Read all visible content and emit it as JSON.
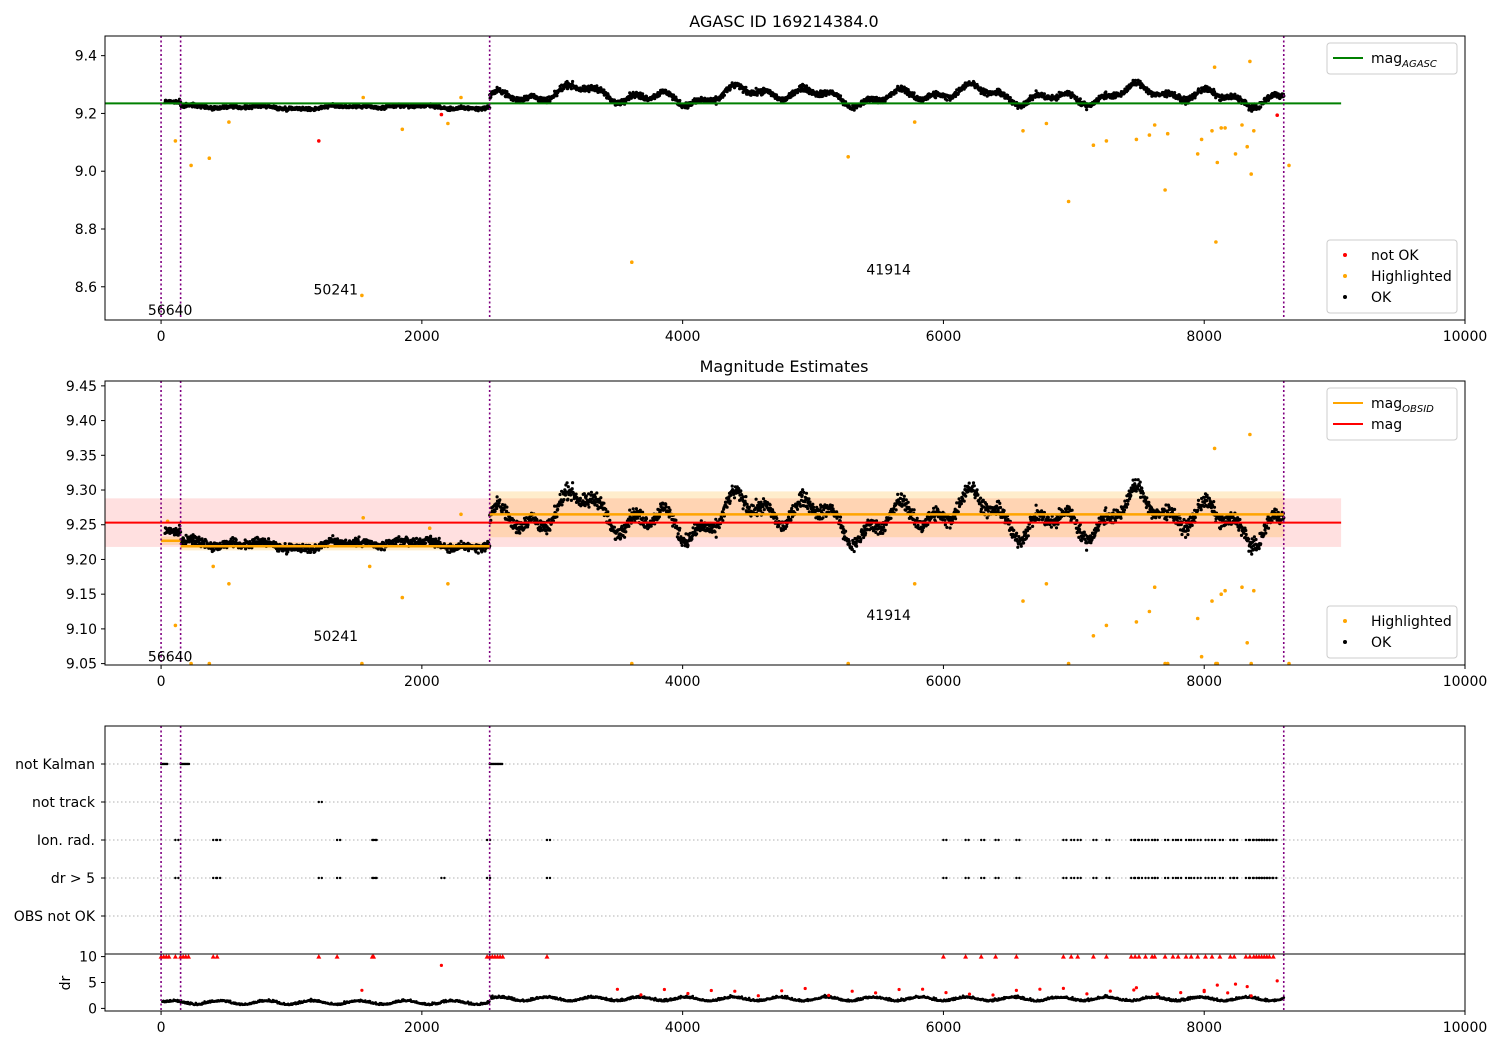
{
  "chart_data": [
    {
      "type": "scatter",
      "title": "AGASC ID 169214384.0",
      "xlim": [
        -430,
        10000
      ],
      "ylim": [
        8.485,
        9.468
      ],
      "xticks": [
        0,
        2000,
        4000,
        6000,
        8000,
        10000
      ],
      "yticks": [
        8.6,
        8.8,
        9.0,
        9.2,
        9.4
      ],
      "xtick_labels": [
        "0",
        "2000",
        "4000",
        "6000",
        "8000",
        "10000"
      ],
      "ytick_labels": [
        "8.6",
        "8.8",
        "9.0",
        "9.2",
        "9.4"
      ],
      "obsid_boundaries": [
        0,
        150,
        2520,
        8610
      ],
      "obsid_labels": [
        {
          "text": "56640",
          "x": 70,
          "y": 8.52
        },
        {
          "text": "50241",
          "x": 1340,
          "y": 8.59
        },
        {
          "text": "41914",
          "x": 5580,
          "y": 8.66
        }
      ],
      "mag_agasc": {
        "value": 9.235,
        "x": [
          -430,
          9050
        ],
        "color": "#008000"
      },
      "series": [
        {
          "name": "not OK",
          "color": "#ff0000",
          "points": [
            [
              1210,
              9.105
            ],
            [
              2150,
              9.196
            ],
            [
              8560,
              9.194
            ]
          ]
        },
        {
          "name": "Highlighted",
          "color": "#ffa500",
          "points": [
            [
              110,
              9.105
            ],
            [
              230,
              9.02
            ],
            [
              370,
              9.045
            ],
            [
              520,
              9.17
            ],
            [
              1540,
              8.57
            ],
            [
              1550,
              9.255
            ],
            [
              1850,
              9.145
            ],
            [
              2200,
              9.165
            ],
            [
              2300,
              9.255
            ],
            [
              3610,
              8.685
            ],
            [
              5270,
              9.05
            ],
            [
              5780,
              9.17
            ],
            [
              6610,
              9.14
            ],
            [
              6790,
              9.165
            ],
            [
              6960,
              8.895
            ],
            [
              7150,
              9.09
            ],
            [
              7250,
              9.105
            ],
            [
              7480,
              9.11
            ],
            [
              7580,
              9.125
            ],
            [
              7620,
              9.16
            ],
            [
              7700,
              8.935
            ],
            [
              7720,
              9.13
            ],
            [
              7950,
              9.06
            ],
            [
              7980,
              9.11
            ],
            [
              8060,
              9.14
            ],
            [
              8080,
              9.36
            ],
            [
              8090,
              8.755
            ],
            [
              8100,
              9.03
            ],
            [
              8130,
              9.15
            ],
            [
              8160,
              9.15
            ],
            [
              8240,
              9.06
            ],
            [
              8290,
              9.16
            ],
            [
              8330,
              9.085
            ],
            [
              8350,
              9.38
            ],
            [
              8360,
              8.99
            ],
            [
              8380,
              9.14
            ],
            [
              8650,
              9.02
            ]
          ]
        },
        {
          "name": "OK",
          "color": "#000000",
          "segments": [
            {
              "x0": 30,
              "x1": 150,
              "mean": 9.232,
              "amp": 0.012,
              "noise": 0.006
            },
            {
              "x0": 150,
              "x1": 2520,
              "mean": 9.222,
              "amp": 0.006,
              "noise": 0.006
            },
            {
              "x0": 2520,
              "x1": 8610,
              "mean": 9.262,
              "amp": 0.03,
              "noise": 0.01
            }
          ]
        }
      ],
      "legends": [
        {
          "place": "upper-right",
          "entries": [
            {
              "label": "mag",
              "sub": "AGASC",
              "marker": "line",
              "color": "#008000"
            }
          ]
        },
        {
          "place": "lower-right",
          "entries": [
            {
              "label": "not OK",
              "marker": "dot",
              "color": "#ff0000"
            },
            {
              "label": "Highlighted",
              "marker": "dot",
              "color": "#ffa500"
            },
            {
              "label": "OK",
              "marker": "dot",
              "color": "#000000"
            }
          ]
        }
      ]
    },
    {
      "type": "scatter",
      "title": "Magnitude Estimates",
      "xlim": [
        -430,
        10000
      ],
      "ylim": [
        9.048,
        9.457
      ],
      "xticks": [
        0,
        2000,
        4000,
        6000,
        8000,
        10000
      ],
      "yticks": [
        9.05,
        9.1,
        9.15,
        9.2,
        9.25,
        9.3,
        9.35,
        9.4,
        9.45
      ],
      "xtick_labels": [
        "0",
        "2000",
        "4000",
        "6000",
        "8000",
        "10000"
      ],
      "ytick_labels": [
        "9.05",
        "9.10",
        "9.15",
        "9.20",
        "9.25",
        "9.30",
        "9.35",
        "9.40",
        "9.45"
      ],
      "obsid_boundaries": [
        0,
        150,
        2520,
        8610
      ],
      "obsid_labels": [
        {
          "text": "56640",
          "x": 70,
          "y": 9.06
        },
        {
          "text": "50241",
          "x": 1340,
          "y": 9.09
        },
        {
          "text": "41914",
          "x": 5580,
          "y": 9.12
        }
      ],
      "mag": {
        "value": 9.253,
        "band": [
          9.218,
          9.288
        ],
        "x": [
          -430,
          9050
        ],
        "color": "#ff0000"
      },
      "mag_obsid": [
        {
          "x0": 0,
          "x1": 150,
          "value": 9.227,
          "band": [
            9.221,
            9.233
          ]
        },
        {
          "x0": 150,
          "x1": 2520,
          "value": 9.219,
          "band": [
            9.213,
            9.225
          ]
        },
        {
          "x0": 2520,
          "x1": 8610,
          "value": 9.265,
          "band": [
            9.232,
            9.298
          ]
        }
      ],
      "series": [
        {
          "name": "Highlighted",
          "color": "#ffa500",
          "points": [
            [
              50,
              9.255
            ],
            [
              110,
              9.105
            ],
            [
              230,
              9.05
            ],
            [
              370,
              9.05
            ],
            [
              400,
              9.19
            ],
            [
              520,
              9.165
            ],
            [
              1540,
              9.05
            ],
            [
              1550,
              9.26
            ],
            [
              1600,
              9.19
            ],
            [
              1850,
              9.145
            ],
            [
              2060,
              9.245
            ],
            [
              2200,
              9.165
            ],
            [
              2300,
              9.265
            ],
            [
              3610,
              9.05
            ],
            [
              5270,
              9.05
            ],
            [
              5780,
              9.165
            ],
            [
              6610,
              9.14
            ],
            [
              6790,
              9.165
            ],
            [
              6960,
              9.05
            ],
            [
              7150,
              9.09
            ],
            [
              7250,
              9.105
            ],
            [
              7480,
              9.11
            ],
            [
              7580,
              9.125
            ],
            [
              7620,
              9.16
            ],
            [
              7700,
              9.05
            ],
            [
              7720,
              9.05
            ],
            [
              7950,
              9.115
            ],
            [
              7980,
              9.06
            ],
            [
              8060,
              9.14
            ],
            [
              8080,
              9.36
            ],
            [
              8090,
              9.05
            ],
            [
              8100,
              9.05
            ],
            [
              8130,
              9.15
            ],
            [
              8160,
              9.155
            ],
            [
              8290,
              9.16
            ],
            [
              8330,
              9.08
            ],
            [
              8350,
              9.38
            ],
            [
              8360,
              9.05
            ],
            [
              8380,
              9.155
            ],
            [
              8650,
              9.05
            ]
          ]
        },
        {
          "name": "OK",
          "color": "#000000",
          "segments": [
            {
              "x0": 30,
              "x1": 150,
              "mean": 9.232,
              "amp": 0.012,
              "noise": 0.006
            },
            {
              "x0": 150,
              "x1": 2520,
              "mean": 9.222,
              "amp": 0.006,
              "noise": 0.006
            },
            {
              "x0": 2520,
              "x1": 8610,
              "mean": 9.262,
              "amp": 0.03,
              "noise": 0.01
            }
          ]
        }
      ],
      "legends": [
        {
          "place": "upper-right",
          "entries": [
            {
              "label": "mag",
              "sub": "OBSID",
              "marker": "line",
              "color": "#ffa500"
            },
            {
              "label": "mag",
              "marker": "line",
              "color": "#ff0000"
            }
          ]
        },
        {
          "place": "lower-right",
          "entries": [
            {
              "label": "Highlighted",
              "marker": "dot",
              "color": "#ffa500"
            },
            {
              "label": "OK",
              "marker": "dot",
              "color": "#000000"
            }
          ]
        }
      ]
    },
    {
      "type": "scatter",
      "xlim": [
        -430,
        10000
      ],
      "categories": [
        "not Kalman",
        "not track",
        "Ion. rad.",
        "dr > 5",
        "OBS not OK"
      ],
      "obsid_boundaries": [
        0,
        150,
        2520,
        8610
      ],
      "grid": true,
      "flags": {
        "not Kalman": [
          [
            0,
            50
          ],
          [
            150,
            220
          ],
          [
            2520,
            2620
          ]
        ],
        "not track": [
          1210
        ],
        "Ion. rad.": [
          110,
          400,
          430,
          1350,
          1620,
          1630,
          2500,
          2960,
          6000,
          6170,
          6290,
          6400,
          6560,
          6920,
          6980,
          7030,
          7150,
          7250,
          7440,
          7470,
          7500,
          7550,
          7600,
          7620,
          7700,
          7760,
          7800,
          7860,
          7900,
          7950,
          8010,
          8060,
          8120,
          8200,
          8230,
          8320,
          8350,
          8380,
          8400,
          8420,
          8440,
          8460,
          8480,
          8500,
          8530
        ],
        "dr > 5": [
          110,
          400,
          430,
          1210,
          1350,
          1620,
          1630,
          2150,
          2500,
          2960,
          6000,
          6170,
          6290,
          6400,
          6560,
          6920,
          6980,
          7030,
          7150,
          7250,
          7440,
          7470,
          7500,
          7550,
          7600,
          7620,
          7700,
          7760,
          7800,
          7860,
          7900,
          7950,
          8010,
          8060,
          8120,
          8200,
          8230,
          8320,
          8350,
          8380,
          8400,
          8420,
          8440,
          8460,
          8480,
          8500,
          8530
        ],
        "OBS not OK": []
      }
    },
    {
      "type": "scatter",
      "ylabel": "dr",
      "xlim": [
        -430,
        10000
      ],
      "ylim": [
        -0.5,
        10.5
      ],
      "xticks": [
        0,
        2000,
        4000,
        6000,
        8000,
        10000
      ],
      "yticks": [
        0,
        5,
        10
      ],
      "xtick_labels": [
        "0",
        "2000",
        "4000",
        "6000",
        "8000",
        "10000"
      ],
      "ytick_labels": [
        "0",
        "5",
        "10"
      ],
      "obsid_boundaries": [
        0,
        150,
        2520,
        8610
      ],
      "clipped_marker": "triangle-up at 10",
      "dr_points": {
        "clipped_at_10": [
          0,
          20,
          40,
          60,
          110,
          150,
          170,
          190,
          210,
          400,
          430,
          1210,
          1350,
          1620,
          1630,
          2500,
          2520,
          2540,
          2560,
          2580,
          2600,
          2620,
          2960,
          6000,
          6170,
          6290,
          6400,
          6560,
          6920,
          6980,
          7030,
          7150,
          7250,
          7440,
          7470,
          7500,
          7550,
          7600,
          7620,
          7700,
          7760,
          7800,
          7860,
          7900,
          7950,
          8010,
          8060,
          8120,
          8200,
          8230,
          8320,
          8350,
          8380,
          8400,
          8420,
          8440,
          8460,
          8480,
          8500,
          8530
        ],
        "red_mid": [
          [
            2150,
            8.3
          ],
          [
            1540,
            3.5
          ],
          [
            8560,
            5.3
          ],
          [
            8100,
            4.5
          ],
          [
            8240,
            4.7
          ],
          [
            8330,
            4.2
          ],
          [
            7480,
            4.0
          ],
          [
            8000,
            3.5
          ]
        ]
      },
      "dr_trend": [
        {
          "x0": 0,
          "x1": 2520,
          "mean": 1.0
        },
        {
          "x0": 2520,
          "x1": 8610,
          "mean": 1.7
        }
      ]
    }
  ]
}
